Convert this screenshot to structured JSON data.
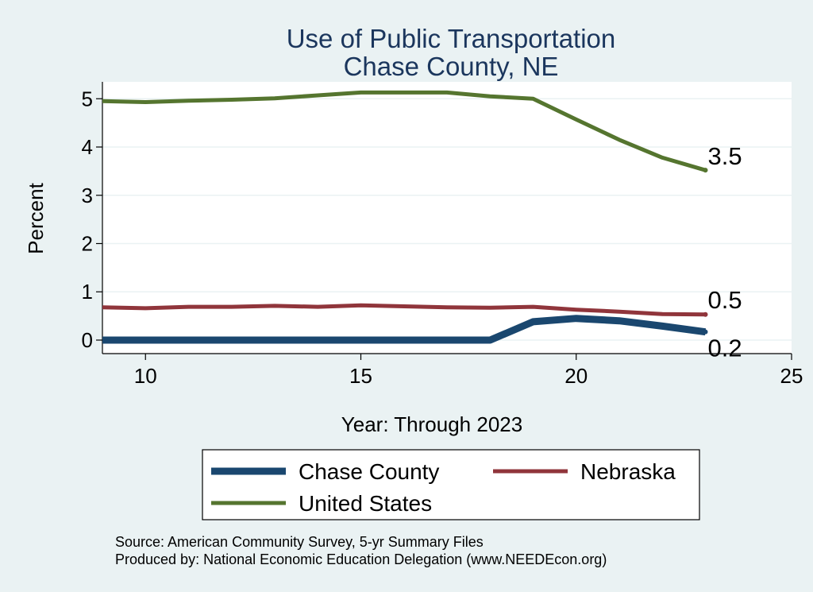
{
  "chart_data": {
    "type": "line",
    "title": [
      "Use of Public Transportation",
      "Chase County, NE"
    ],
    "xlabel": "Year: Through 2023",
    "ylabel": "Percent",
    "xlim": [
      9,
      25
    ],
    "ylim": [
      -0.28,
      5.35
    ],
    "x_ticks": [
      10,
      15,
      20,
      25
    ],
    "y_ticks": [
      0,
      1,
      2,
      3,
      4,
      5
    ],
    "grid": "horizontal",
    "legend_position": "bottom",
    "series": [
      {
        "name": "Chase County",
        "color": "#1a476f",
        "x": [
          9,
          10,
          11,
          12,
          13,
          14,
          15,
          16,
          17,
          18,
          19,
          20,
          21,
          22,
          23
        ],
        "values": [
          0,
          0,
          0,
          0,
          0,
          0,
          0,
          0,
          0,
          0,
          0.38,
          0.45,
          0.4,
          0.29,
          0.17
        ],
        "end_label": "0.2"
      },
      {
        "name": "Nebraska",
        "color": "#90353b",
        "x": [
          9,
          10,
          11,
          12,
          13,
          14,
          15,
          16,
          17,
          18,
          19,
          20,
          21,
          22,
          23
        ],
        "values": [
          0.68,
          0.66,
          0.69,
          0.69,
          0.71,
          0.69,
          0.72,
          0.7,
          0.68,
          0.67,
          0.69,
          0.63,
          0.59,
          0.54,
          0.53
        ],
        "end_label": "0.5"
      },
      {
        "name": "United States",
        "color": "#55752f",
        "x": [
          9,
          10,
          11,
          12,
          13,
          14,
          15,
          16,
          17,
          18,
          19,
          20,
          21,
          22,
          23
        ],
        "values": [
          4.95,
          4.93,
          4.96,
          4.98,
          5.01,
          5.07,
          5.13,
          5.13,
          5.13,
          5.05,
          5.0,
          4.57,
          4.15,
          3.78,
          3.52
        ],
        "end_label": "3.5"
      }
    ],
    "notes": [
      "Source: American Community Survey, 5-yr Summary Files",
      "Produced by: National Economic Education Delegation (www.NEEDEcon.org)"
    ]
  }
}
